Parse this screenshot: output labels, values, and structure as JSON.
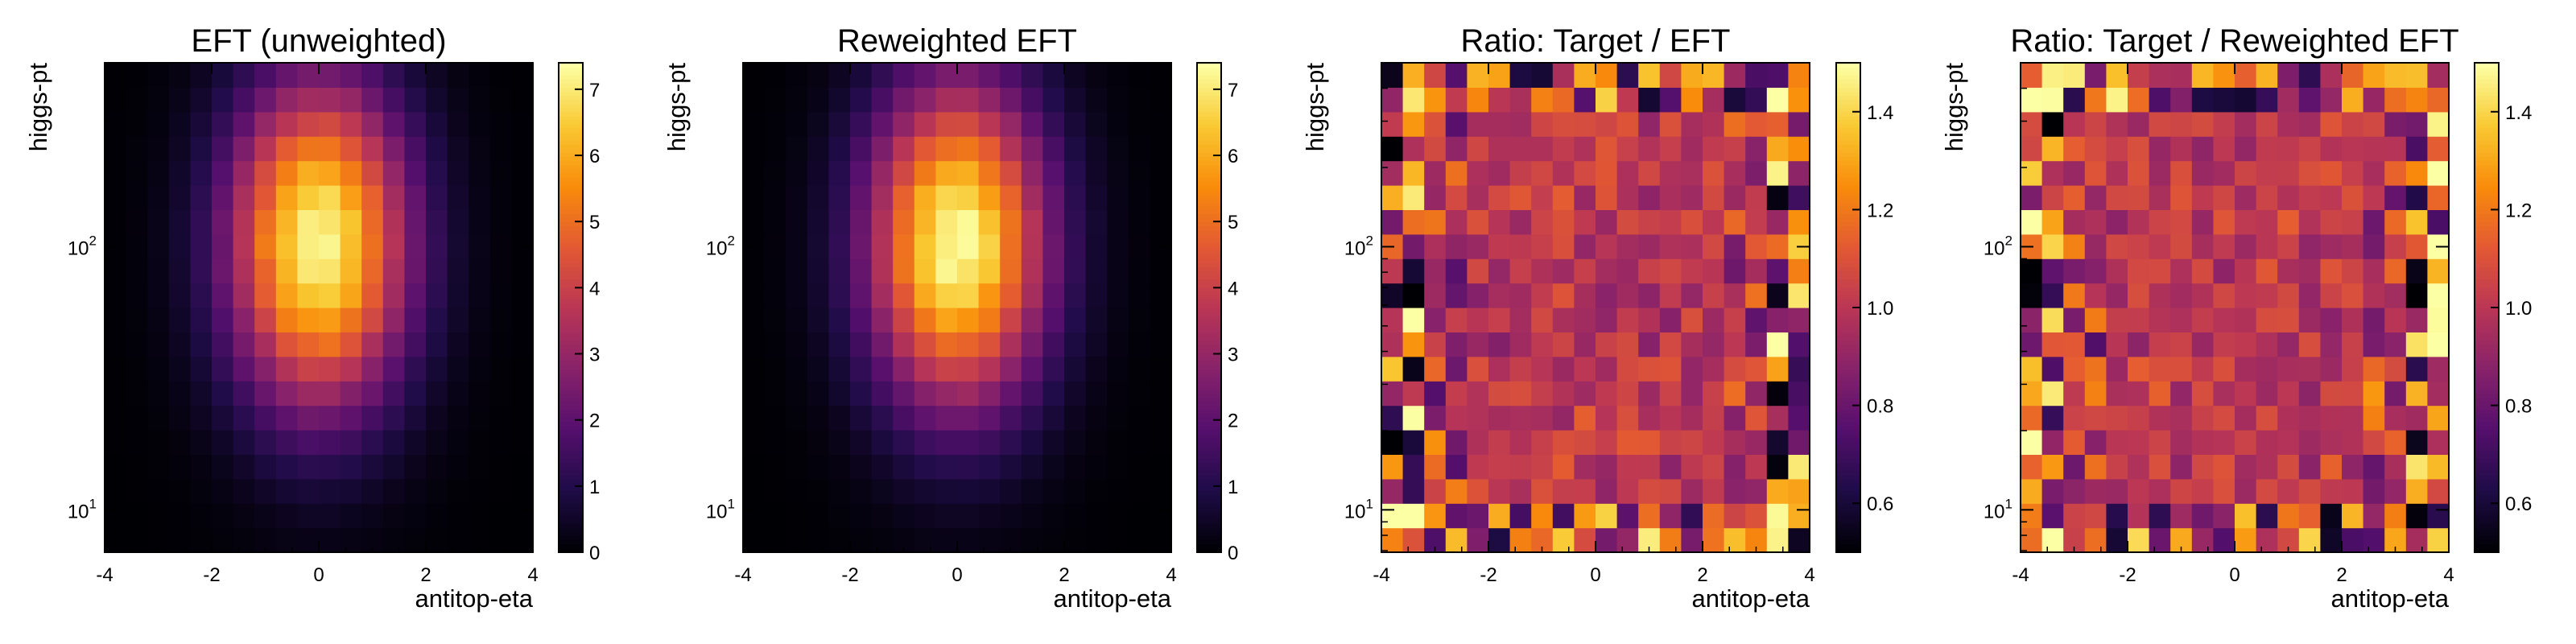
{
  "chart_data": [
    {
      "type": "heatmap",
      "title": "EFT (unweighted)",
      "xlabel": "antitop-eta",
      "ylabel": "higgs-pt",
      "xlim": [
        -4,
        4
      ],
      "ylog": true,
      "x_ticks": [
        "-4",
        "-2",
        "0",
        "2",
        "4"
      ],
      "y_ticks": [
        "10",
        "10"
      ],
      "y_tick_exponents": [
        "1",
        "2"
      ],
      "zlim": [
        0,
        7.4
      ],
      "colorbar_ticks": [
        "0",
        "1",
        "2",
        "3",
        "4",
        "5",
        "6",
        "7"
      ],
      "colormap": "inferno",
      "grid": false
    },
    {
      "type": "heatmap",
      "title": "Reweighted EFT",
      "xlabel": "antitop-eta",
      "ylabel": "higgs-pt",
      "xlim": [
        -4,
        4
      ],
      "ylog": true,
      "x_ticks": [
        "-4",
        "-2",
        "0",
        "2",
        "4"
      ],
      "y_ticks": [
        "10",
        "10"
      ],
      "y_tick_exponents": [
        "1",
        "2"
      ],
      "zlim": [
        0,
        7.4
      ],
      "colorbar_ticks": [
        "0",
        "1",
        "2",
        "3",
        "4",
        "5",
        "6",
        "7"
      ],
      "colormap": "inferno",
      "grid": false
    },
    {
      "type": "heatmap",
      "title": "Ratio: Target / EFT",
      "xlabel": "antitop-eta",
      "ylabel": "higgs-pt",
      "xlim": [
        -4,
        4
      ],
      "ylog": true,
      "x_ticks": [
        "-4",
        "-2",
        "0",
        "2",
        "4"
      ],
      "y_ticks": [
        "10",
        "10"
      ],
      "y_tick_exponents": [
        "1",
        "2"
      ],
      "zlim": [
        0.5,
        1.5
      ],
      "colorbar_ticks": [
        "0.6",
        "0.8",
        "1.0",
        "1.2",
        "1.4"
      ],
      "colormap": "inferno",
      "grid": false
    },
    {
      "type": "heatmap",
      "title": "Ratio: Target / Reweighted EFT",
      "xlabel": "antitop-eta",
      "ylabel": "higgs-pt",
      "xlim": [
        -4,
        4
      ],
      "ylog": true,
      "x_ticks": [
        "-4",
        "-2",
        "0",
        "2",
        "4"
      ],
      "y_ticks": [
        "10",
        "10"
      ],
      "y_tick_exponents": [
        "1",
        "2"
      ],
      "zlim": [
        0.5,
        1.5
      ],
      "colorbar_ticks": [
        "0.6",
        "0.8",
        "1.0",
        "1.2",
        "1.4"
      ],
      "colormap": "inferno",
      "grid": false
    }
  ]
}
